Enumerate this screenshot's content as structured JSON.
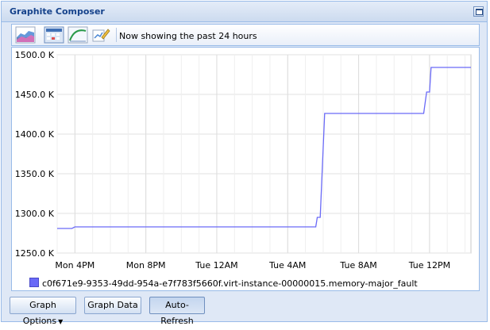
{
  "window": {
    "title": "Graphite Composer"
  },
  "toolbar": {
    "icons": [
      "graph-options-icon",
      "calendar-date-range-icon",
      "recent-curve-icon",
      "edit-graph-icon"
    ],
    "status_text": "Now showing the past 24 hours"
  },
  "chart_data": {
    "type": "line",
    "y_ticks": [
      "1500.0 K",
      "1450.0 K",
      "1400.0 K",
      "1350.0 K",
      "1300.0 K",
      "1250.0 K"
    ],
    "ylim": [
      1250000,
      1500000
    ],
    "x_ticks": [
      "Mon  4PM",
      "Mon  8PM",
      "Tue 12AM",
      "Tue  4AM",
      "Tue  8AM",
      "Tue 12PM"
    ],
    "grid": true,
    "series": [
      {
        "name": "c0f671e9-9353-49dd-954a-e7f783f5660f.virt-instance-00000015.memory-major_fault",
        "color": "#6a6af7",
        "points": [
          [
            "Mon 3:00PM",
            1281000
          ],
          [
            "Mon 3:50PM",
            1281000
          ],
          [
            "Mon 4:00PM",
            1283000
          ],
          [
            "Tue 5:35AM",
            1283000
          ],
          [
            "Tue 5:40AM",
            1295000
          ],
          [
            "Tue 5:50AM",
            1295000
          ],
          [
            "Tue 6:05AM",
            1426000
          ],
          [
            "Tue 11:40AM",
            1426000
          ],
          [
            "Tue 11:50AM",
            1453000
          ],
          [
            "Tue 12:00PM",
            1453000
          ],
          [
            "Tue 12:05PM",
            1484000
          ],
          [
            "Tue 2:20PM",
            1484000
          ]
        ]
      }
    ]
  },
  "legend": {
    "label": "c0f671e9-9353-49dd-954a-e7f783f5660f.virt-instance-00000015.memory-major_fault"
  },
  "buttons": {
    "graph_options": "Graph Options",
    "graph_data": "Graph Data",
    "auto_refresh": "Auto-Refresh"
  }
}
